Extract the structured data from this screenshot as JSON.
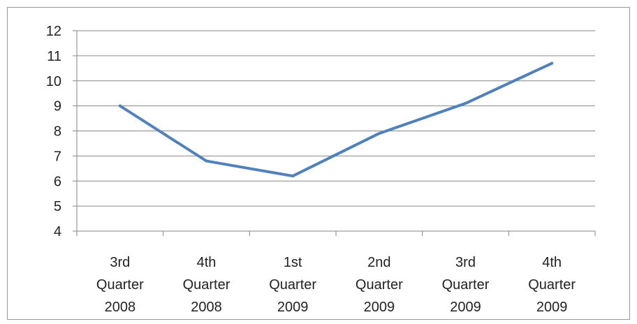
{
  "chart_data": {
    "type": "line",
    "categories": [
      [
        "3rd",
        "Quarter",
        "2008"
      ],
      [
        "4th",
        "Quarter",
        "2008"
      ],
      [
        "1st",
        "Quarter",
        "2009"
      ],
      [
        "2nd",
        "Quarter",
        "2009"
      ],
      [
        "3rd",
        "Quarter",
        "2009"
      ],
      [
        "4th",
        "Quarter",
        "2009"
      ]
    ],
    "values": [
      9.0,
      6.8,
      6.2,
      7.9,
      9.1,
      10.7
    ],
    "yticks": [
      "4",
      "5",
      "6",
      "7",
      "8",
      "9",
      "10",
      "11",
      "12"
    ],
    "ylim": [
      4,
      12
    ],
    "grid": true,
    "title": "",
    "xlabel": "",
    "ylabel": "",
    "line_color": "#4f81bd",
    "grid_color": "#868686"
  }
}
